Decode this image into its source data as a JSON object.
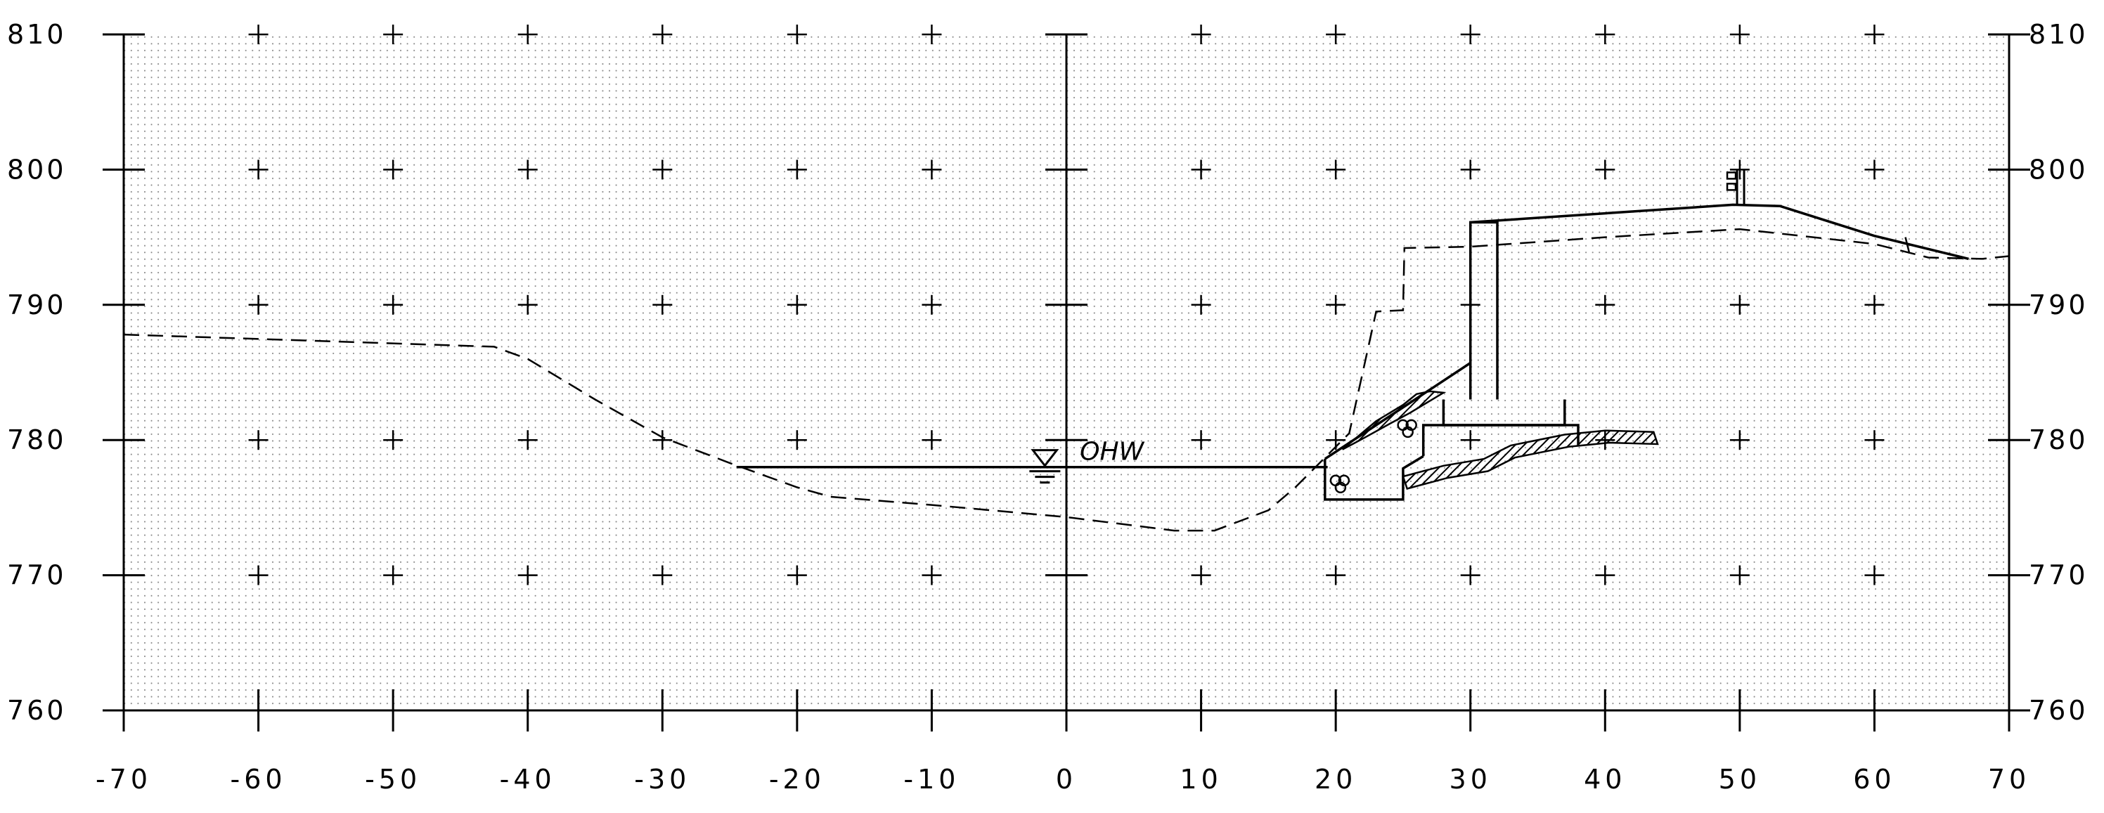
{
  "chart_data": {
    "type": "cross-section",
    "title": "",
    "xlabel": "",
    "ylabel": "",
    "xlim": [
      -70,
      70
    ],
    "ylim": [
      760,
      810
    ],
    "x_ticks": [
      "-70",
      "-60",
      "-50",
      "-40",
      "-30",
      "-20",
      "-10",
      "0",
      "10",
      "20",
      "30",
      "40",
      "50",
      "60",
      "70"
    ],
    "y_ticks": [
      "810",
      "800",
      "790",
      "780",
      "770",
      "760"
    ],
    "grid": "dotted",
    "annotations": [
      {
        "text": "OHW",
        "x": 1,
        "y": 778
      }
    ],
    "existing_ground": [
      [
        -70,
        787.8
      ],
      [
        -42.5,
        786.9
      ],
      [
        -40,
        786
      ],
      [
        -35,
        783
      ],
      [
        -30,
        780.2
      ],
      [
        -25,
        778.3
      ],
      [
        -20,
        776.5
      ],
      [
        -17.5,
        775.8
      ],
      [
        -10,
        775.2
      ],
      [
        0,
        774.3
      ],
      [
        8,
        773.3
      ],
      [
        11,
        773.3
      ],
      [
        15,
        774.8
      ],
      [
        17,
        776.5
      ],
      [
        21,
        780.5
      ],
      [
        22,
        785
      ],
      [
        23,
        789.5
      ],
      [
        25,
        789.6
      ],
      [
        25.1,
        794.2
      ],
      [
        30,
        794.3
      ],
      [
        40,
        795
      ],
      [
        50,
        795.6
      ],
      [
        60,
        794.5
      ],
      [
        64,
        793.5
      ],
      [
        68,
        793.4
      ],
      [
        70,
        793.6
      ]
    ],
    "proposed_surface": [
      [
        30,
        796.1
      ],
      [
        49.5,
        797.4
      ],
      [
        53,
        797.3
      ],
      [
        60,
        795.1
      ],
      [
        67,
        793.4
      ]
    ],
    "ohw_line": [
      [
        -24.5,
        778
      ],
      [
        19.4,
        778
      ]
    ],
    "riprap_slope": [
      [
        19.2,
        778.6
      ],
      [
        30,
        785.7
      ]
    ],
    "riprap_toe": [
      [
        19.2,
        778.6
      ],
      [
        19.2,
        775.6
      ],
      [
        25,
        775.6
      ],
      [
        25,
        777.9
      ],
      [
        26.5,
        778.8
      ]
    ],
    "wall_stem": [
      [
        30,
        783
      ],
      [
        30,
        796.1
      ],
      [
        32,
        796.1
      ],
      [
        32,
        783
      ]
    ],
    "footing_upper": [
      [
        28,
        783
      ],
      [
        28,
        781.1
      ],
      [
        37,
        781.1
      ],
      [
        37,
        783
      ]
    ],
    "footing_lower": [
      [
        26.5,
        778.8
      ],
      [
        26.5,
        781.1
      ],
      [
        38,
        781.1
      ],
      [
        38,
        779.6
      ]
    ],
    "bedrock_top": [
      [
        25,
        777.3
      ],
      [
        28,
        778.1
      ],
      [
        31,
        778.6
      ],
      [
        33,
        779.6
      ],
      [
        37,
        780.4
      ],
      [
        40,
        780.7
      ],
      [
        43.6,
        780.6
      ]
    ],
    "riprap_hatch": [
      [
        23,
        781.4
      ],
      [
        25,
        782.6
      ],
      [
        26,
        783.4
      ],
      [
        27,
        783.6
      ],
      [
        28,
        783.5
      ],
      [
        27,
        782.9
      ],
      [
        25.5,
        782
      ],
      [
        24,
        781.2
      ],
      [
        22,
        780.1
      ],
      [
        20.5,
        779.3
      ]
    ],
    "rail_post": {
      "x": 49.8,
      "y_base": 797.4,
      "y_top": 800
    },
    "colors": {
      "line": "#000000",
      "grid_dots": "#8a8a8a",
      "background": "#ffffff"
    }
  }
}
